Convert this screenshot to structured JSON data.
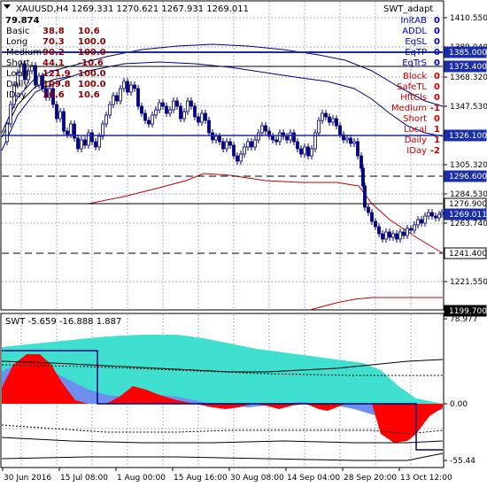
{
  "header": {
    "symbol_line": "XAUUSD,H4  1269.331 1270.621 1267.931 1269.011",
    "value": "79.874"
  },
  "indicator_name": "SWT_adapt",
  "left_table": [
    {
      "label": "Basic",
      "v1": "38.8",
      "v2": "10.6"
    },
    {
      "label": "Long",
      "v1": "70.3",
      "v2": "100.0"
    },
    {
      "label": "Medium",
      "v1": "90.2",
      "v2": "100.0"
    },
    {
      "label": "Short",
      "v1": "44.1",
      "v2": "-10.6"
    },
    {
      "label": "Local",
      "v1": "121.9",
      "v2": "100.0"
    },
    {
      "label": "Daily",
      "v1": "109.8",
      "v2": "100.0"
    },
    {
      "label": "IDay",
      "v1": "10.6",
      "v2": "10.6"
    }
  ],
  "right_table": [
    {
      "label": "InitAB",
      "value": "0",
      "color": "#0000c8"
    },
    {
      "label": "ADDL",
      "value": "0",
      "color": "#0000c8"
    },
    {
      "label": "EqSL",
      "value": "0",
      "color": "#0000c8"
    },
    {
      "label": "EqTP",
      "value": "0",
      "color": "#0000c8"
    },
    {
      "label": "EqTrS",
      "value": "0",
      "color": "#0000c8"
    },
    {
      "label": "Block",
      "value": "0",
      "color": "#c80000"
    },
    {
      "label": "SafeTL",
      "value": "0",
      "color": "#c80000"
    },
    {
      "label": "HftCls",
      "value": "0",
      "color": "#c80000"
    },
    {
      "label": "Medium",
      "value": "-1",
      "color": "#c80000"
    },
    {
      "label": "Short",
      "value": "0",
      "color": "#c80000"
    },
    {
      "label": "Local",
      "value": "1",
      "color": "#c80000"
    },
    {
      "label": "Daily",
      "value": "1",
      "color": "#c80000"
    },
    {
      "label": "IDay",
      "value": "-2",
      "color": "#c80000"
    }
  ],
  "price_axis": {
    "ticks": [
      "1410.550",
      "1389.040",
      "1368.320",
      "1347.530",
      "1305.320",
      "1284.530",
      "1263.740",
      "1221.550"
    ],
    "boxed_levels": [
      {
        "label": "1385.000",
        "style": "blue-fill"
      },
      {
        "label": "1375.400",
        "style": "blue-fill"
      },
      {
        "label": "1326.100",
        "style": "blue-fill"
      },
      {
        "label": "1296.600",
        "style": "blue-fill"
      },
      {
        "label": "1276.900",
        "style": "white"
      },
      {
        "label": "1269.011",
        "style": "blue-fill"
      },
      {
        "label": "1241.400",
        "style": "white"
      },
      {
        "label": "1199.700",
        "style": "black-fill"
      }
    ]
  },
  "sub_window": {
    "title": "SWT -5.659 -16.888 1.887",
    "axis_labels": [
      "78.977",
      "0.00",
      "-55.44"
    ]
  },
  "time_axis": [
    "30 Jun 2016",
    "15 Jul 08:00",
    "1 Aug 00:00",
    "15 Aug 16:00",
    "30 Aug 08:00",
    "14 Sep 04:00",
    "28 Sep 20:00",
    "13 Oct 12:00"
  ],
  "colors": {
    "grid": "#9fb0c8",
    "candles": "#000080",
    "level_line": "#1e2aa0",
    "cyan_fill": "#40e0d0",
    "red_fill": "#ff0000",
    "blue_fill": "#6e8ef0",
    "ma_red": "#c00000",
    "label_text": "#8b0000"
  }
}
